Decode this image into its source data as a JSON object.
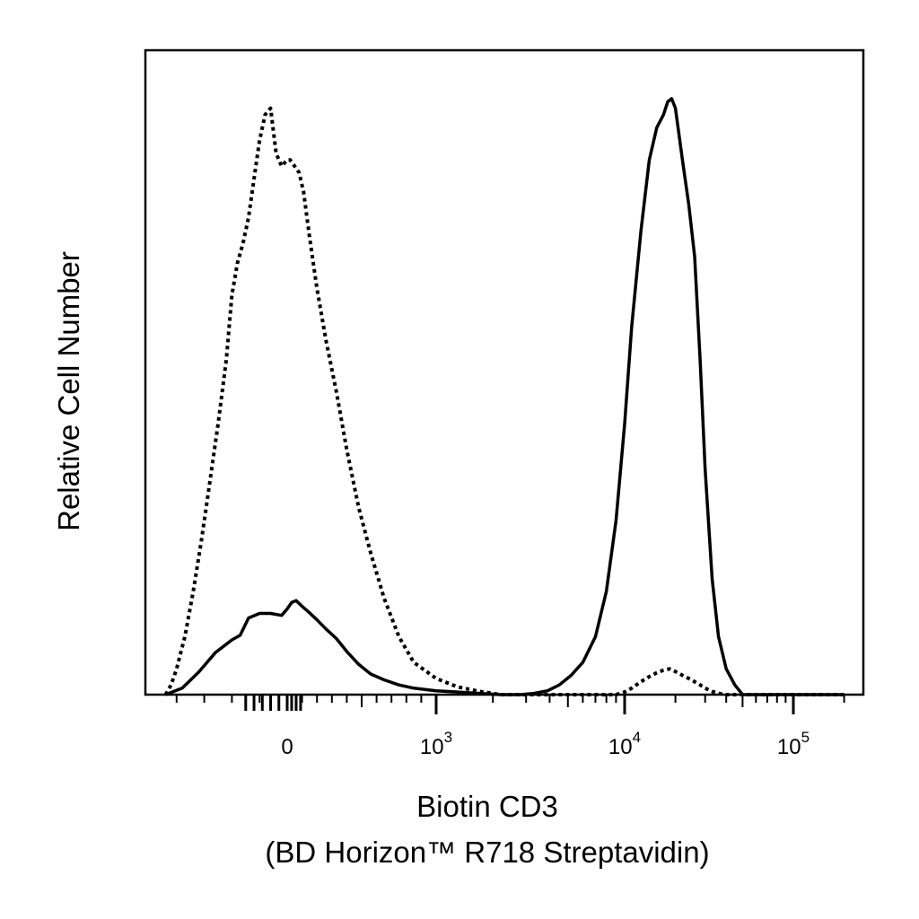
{
  "chart_data": {
    "type": "line",
    "title": "",
    "xlabel": "Biotin CD3",
    "xlabel_line2": "(BD Horizon™ R718 Streptavidin)",
    "ylabel": "Relative Cell Number",
    "x_scale": "biexponential (linear near 0, log above 10^3)",
    "xlim": [
      -500,
      200000
    ],
    "ylim": [
      0,
      100
    ],
    "grid": false,
    "legend": "none",
    "x_tick_labels": [
      {
        "value": 0,
        "base": "0",
        "exp": ""
      },
      {
        "value": 1000,
        "base": "10",
        "exp": "3"
      },
      {
        "value": 10000,
        "base": "10",
        "exp": "4"
      },
      {
        "value": 100000,
        "base": "10",
        "exp": "5"
      }
    ],
    "series": [
      {
        "style": "solid",
        "color": "#000000",
        "x": [
          -440,
          -380,
          -320,
          -260,
          -200,
          -170,
          -140,
          -100,
          -60,
          -20,
          0,
          30,
          60,
          100,
          150,
          200,
          260,
          330,
          400,
          480,
          560,
          650,
          750,
          850,
          1000,
          1300,
          1700,
          2200,
          2800,
          3300,
          3900,
          4500,
          5200,
          6000,
          7000,
          8000,
          9000,
          10000,
          11000,
          12500,
          14000,
          15500,
          17000,
          18000,
          19000,
          20000,
          22000,
          24000,
          26000,
          28000,
          30000,
          33000,
          36000,
          40000,
          45000,
          50000,
          60000,
          80000,
          100000,
          150000,
          200000
        ],
        "y": [
          0.0,
          1.0,
          3.5,
          6.5,
          8.5,
          9.2,
          11.9,
          12.6,
          12.6,
          12.3,
          13.3,
          14.3,
          14.6,
          13.7,
          12.7,
          11.6,
          10.2,
          8.7,
          6.7,
          4.7,
          3.2,
          2.3,
          1.5,
          1.0,
          0.6,
          0.4,
          0.2,
          0.0,
          0.0,
          0.2,
          0.6,
          1.5,
          3.0,
          5.0,
          9.0,
          16.0,
          27.0,
          42.0,
          57.0,
          72.0,
          83.0,
          88.0,
          90.0,
          92.0,
          92.5,
          91.0,
          83.0,
          76.0,
          68.0,
          52.0,
          35.0,
          18.0,
          9.0,
          4.0,
          1.5,
          0.0,
          0.0,
          0.0,
          0.0,
          0.0,
          0.0
        ]
      },
      {
        "style": "dotted",
        "color": "#000000",
        "x": [
          -440,
          -420,
          -400,
          -370,
          -340,
          -310,
          -280,
          -250,
          -220,
          -200,
          -180,
          -160,
          -140,
          -120,
          -100,
          -80,
          -60,
          -40,
          -20,
          0,
          20,
          50,
          80,
          110,
          150,
          200,
          260,
          330,
          400,
          480,
          560,
          650,
          750,
          850,
          1000,
          1300,
          1700,
          2200,
          2800,
          3300,
          3900,
          4500,
          5200,
          6000,
          7000,
          8000,
          9000,
          10000,
          11000,
          12500,
          14000,
          15500,
          17000,
          18500,
          20000,
          22000,
          24000,
          26000,
          28000,
          30000,
          33000,
          36000,
          40000,
          45000,
          50000,
          60000,
          80000,
          100000,
          150000,
          200000
        ],
        "y": [
          0.0,
          1.5,
          4.0,
          9.0,
          16.0,
          24.0,
          33.0,
          42.0,
          52.0,
          62.0,
          67.0,
          70.0,
          74.0,
          80.0,
          86.0,
          90.0,
          91.0,
          84.0,
          82.0,
          83.0,
          83.0,
          82.0,
          81.0,
          78.0,
          71.0,
          63.0,
          55.0,
          47.0,
          38.0,
          29.0,
          22.0,
          15.0,
          9.0,
          5.0,
          2.5,
          1.2,
          0.5,
          0.0,
          0.0,
          0.0,
          0.0,
          0.0,
          0.0,
          0.0,
          0.0,
          0.0,
          0.0,
          0.4,
          1.0,
          2.0,
          2.8,
          3.4,
          3.8,
          4.0,
          3.6,
          3.0,
          2.5,
          2.0,
          1.5,
          1.0,
          0.5,
          0.2,
          0.0,
          0.0,
          0.0,
          0.0,
          0.0,
          0.0,
          0.0,
          0.0
        ]
      }
    ]
  }
}
